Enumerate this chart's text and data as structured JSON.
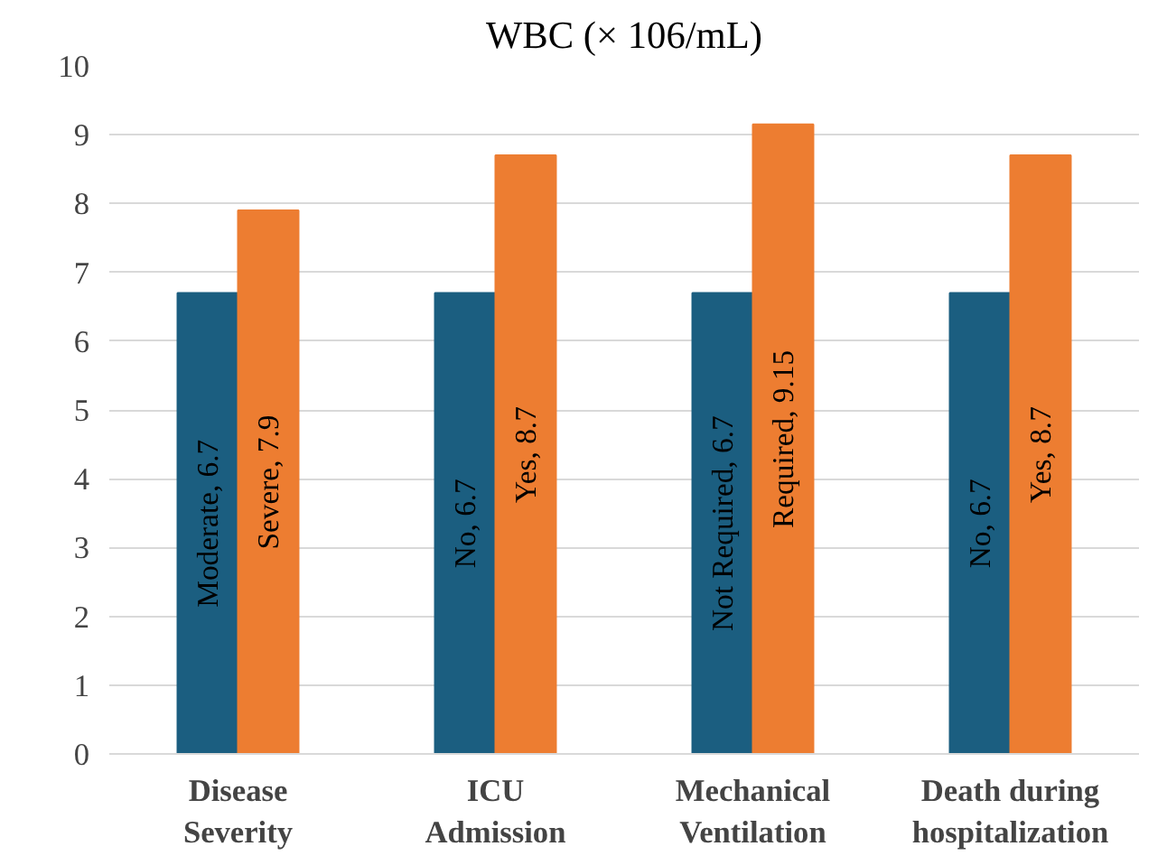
{
  "chart_data": {
    "type": "bar",
    "title": "WBC (× 106/mL)",
    "categories": [
      "Disease Severity",
      "ICU Admission",
      "Mechanical Ventilation",
      "Death during hospitalization"
    ],
    "series": [
      {
        "color": "#1b5e80",
        "values": [
          6.7,
          6.7,
          6.7,
          6.7
        ],
        "value_labels": [
          "Moderate, 6.7",
          "No, 6.7",
          "Not Required, 6.7",
          "No, 6.7"
        ]
      },
      {
        "color": "#ed7d31",
        "values": [
          7.9,
          8.7,
          9.15,
          8.7
        ],
        "value_labels": [
          "Severe, 7.9",
          "Yes, 8.7",
          "Required, 9.15",
          "Yes, 8.7"
        ]
      }
    ],
    "ylim": [
      0,
      10
    ],
    "yticks": [
      0,
      1,
      2,
      3,
      4,
      5,
      6,
      7,
      8,
      9,
      10
    ],
    "grid": "y"
  }
}
